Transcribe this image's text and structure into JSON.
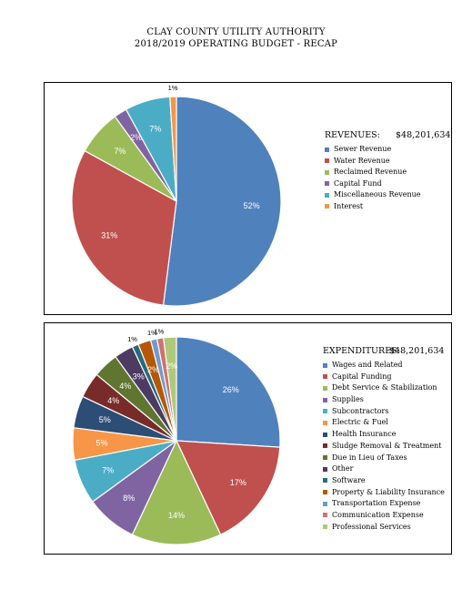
{
  "title": {
    "line1": "CLAY COUNTY UTILITY AUTHORITY",
    "line2": "2018/2019 OPERATING BUDGET - RECAP"
  },
  "chart_data": [
    {
      "type": "pie",
      "heading": "REVENUES:",
      "total": "$48,201,634",
      "legend_placement": "right",
      "slices": [
        {
          "label": "Sewer Revenue",
          "value": 52,
          "display": "52%",
          "color": "#4f81bd"
        },
        {
          "label": "Water Revenue",
          "value": 31,
          "display": "31%",
          "color": "#c0504d"
        },
        {
          "label": "Reclaimed Revenue",
          "value": 7,
          "display": "7%",
          "color": "#9bbb59"
        },
        {
          "label": "Capital Fund",
          "value": 2,
          "display": "2%",
          "color": "#8064a2"
        },
        {
          "label": "Miscellaneous Revenue",
          "value": 7,
          "display": "7%",
          "color": "#4bacc6"
        },
        {
          "label": "Interest",
          "value": 1,
          "display": "1%",
          "color": "#f79646"
        }
      ]
    },
    {
      "type": "pie",
      "heading": "EXPENDITURES:",
      "total": "$48,201,634",
      "legend_placement": "right",
      "slices": [
        {
          "label": "Wages and Related",
          "value": 26,
          "display": "26%",
          "color": "#4f81bd"
        },
        {
          "label": "Capital Funding",
          "value": 17,
          "display": "17%",
          "color": "#c0504d"
        },
        {
          "label": "Debt Service & Stabilization",
          "value": 14,
          "display": "14%",
          "color": "#9bbb59"
        },
        {
          "label": "Supplies",
          "value": 8,
          "display": "8%",
          "color": "#8064a2"
        },
        {
          "label": "Subcontractors",
          "value": 7,
          "display": "7%",
          "color": "#4bacc6"
        },
        {
          "label": "Electric & Fuel",
          "value": 5,
          "display": "5%",
          "color": "#f79646"
        },
        {
          "label": "Health Insurance",
          "value": 5,
          "display": "5%",
          "color": "#2c4d75"
        },
        {
          "label": "Sludge Removal & Treatment",
          "value": 4,
          "display": "4%",
          "color": "#772c2a"
        },
        {
          "label": "Due in Lieu of Taxes",
          "value": 4,
          "display": "4%",
          "color": "#5f7530"
        },
        {
          "label": "Other",
          "value": 3,
          "display": "3%",
          "color": "#4d3b62"
        },
        {
          "label": "Software",
          "value": 1,
          "display": "1%",
          "color": "#276a7c"
        },
        {
          "label": "Property & Liability Insurance",
          "value": 2,
          "display": "2%",
          "color": "#b65708"
        },
        {
          "label": "Transportation Expense",
          "value": 1,
          "display": "1%",
          "color": "#729aca"
        },
        {
          "label": "Communication Expense",
          "value": 1,
          "display": "1%",
          "color": "#cd7371"
        },
        {
          "label": "Professional Services",
          "value": 2,
          "display": "2%",
          "color": "#afc97a"
        }
      ]
    }
  ]
}
